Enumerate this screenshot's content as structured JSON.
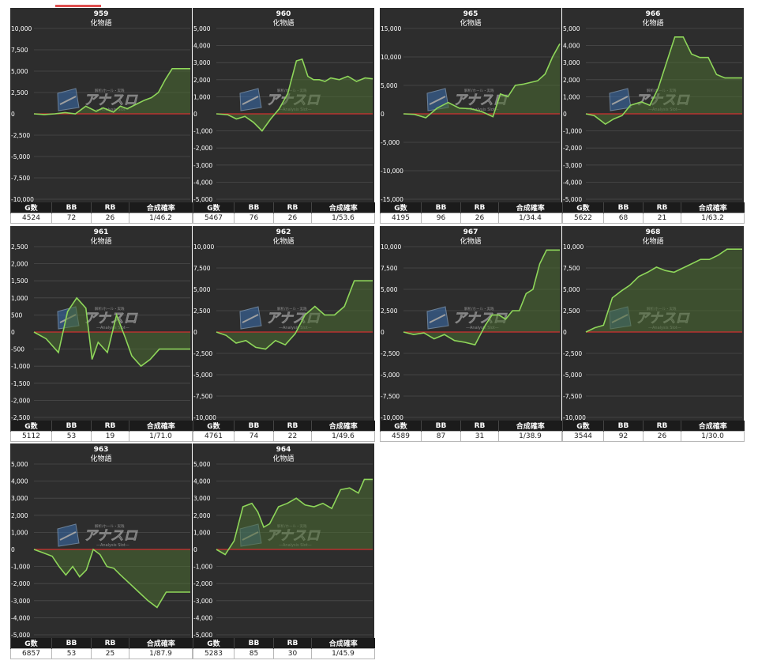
{
  "subtitle": "化物語",
  "headers": [
    "G数",
    "BB",
    "RB",
    "合成確率"
  ],
  "colors": {
    "panel_bg": "#2d2d2d",
    "line": "#8ed65a",
    "fill": "#4a6b32",
    "zero_line": "#d03030",
    "grid": "#4c4c4c",
    "text": "#ffffff"
  },
  "logo": {
    "main": "アナスロ",
    "sub": "—Analysis Slot—",
    "small": "解析/ホール・実践"
  },
  "chart_data": [
    {
      "type": "area",
      "title": "959",
      "ylim": [
        -10000,
        10000
      ],
      "yticks": [
        "10,000",
        "7,500",
        "5,000",
        "2,500",
        "0",
        "-2,500",
        "-5,000",
        "-7,500",
        "-10,000"
      ],
      "x": [
        0,
        300,
        600,
        900,
        1200,
        1500,
        1800,
        2000,
        2300,
        2500,
        2700,
        3000,
        3200,
        3400,
        3600,
        3800,
        4000,
        4200,
        4524
      ],
      "values": [
        0,
        -80,
        0,
        150,
        0,
        900,
        300,
        700,
        200,
        900,
        600,
        1200,
        1600,
        1900,
        2500,
        4000,
        5300,
        5300,
        5300
      ],
      "stats": {
        "games": "4524",
        "bb": "72",
        "rb": "26",
        "rate": "1/46.2"
      }
    },
    {
      "type": "area",
      "title": "960",
      "ylim": [
        -5000,
        5000
      ],
      "yticks": [
        "5,000",
        "4,000",
        "3,000",
        "2,000",
        "1,000",
        "0",
        "-1,000",
        "-2,000",
        "-3,000",
        "-4,000",
        "-5,000"
      ],
      "x": [
        0,
        400,
        700,
        1000,
        1300,
        1600,
        1900,
        2200,
        2500,
        2800,
        3000,
        3200,
        3400,
        3600,
        3800,
        4000,
        4300,
        4600,
        4900,
        5200,
        5467
      ],
      "values": [
        0,
        -50,
        -300,
        -150,
        -500,
        -1000,
        -300,
        300,
        1200,
        3100,
        3200,
        2200,
        2000,
        2000,
        1900,
        2100,
        2000,
        2200,
        1900,
        2100,
        2050
      ],
      "stats": {
        "games": "5467",
        "bb": "76",
        "rb": "26",
        "rate": "1/53.6"
      }
    },
    {
      "type": "area",
      "title": "965",
      "ylim": [
        -15000,
        15000
      ],
      "yticks": [
        "15,000",
        "10,000",
        "5,000",
        "0",
        "-5,000",
        "-10,000",
        "-15,000"
      ],
      "x": [
        0,
        300,
        600,
        900,
        1200,
        1500,
        1800,
        2100,
        2400,
        2600,
        2800,
        3000,
        3200,
        3400,
        3600,
        3800,
        4000,
        4195
      ],
      "values": [
        0,
        -100,
        -700,
        1000,
        2000,
        1000,
        900,
        400,
        -500,
        3500,
        3000,
        5000,
        5200,
        5500,
        5800,
        7000,
        10000,
        12300
      ],
      "stats": {
        "games": "4195",
        "bb": "96",
        "rb": "26",
        "rate": "1/34.4"
      }
    },
    {
      "type": "area",
      "title": "966",
      "ylim": [
        -5000,
        5000
      ],
      "yticks": [
        "5,000",
        "4,000",
        "3,000",
        "2,000",
        "1,000",
        "0",
        "-1,000",
        "-2,000",
        "-3,000",
        "-4,000",
        "-5,000"
      ],
      "x": [
        0,
        300,
        700,
        1000,
        1300,
        1600,
        2000,
        2300,
        2600,
        2900,
        3200,
        3500,
        3800,
        4100,
        4400,
        4700,
        5000,
        5300,
        5622
      ],
      "values": [
        0,
        -100,
        -600,
        -300,
        -100,
        500,
        700,
        500,
        1500,
        3000,
        4500,
        4500,
        3500,
        3300,
        3300,
        2300,
        2100,
        2100,
        2100
      ],
      "stats": {
        "games": "5622",
        "bb": "68",
        "rb": "21",
        "rate": "1/63.2"
      }
    },
    {
      "type": "area",
      "title": "961",
      "ylim": [
        -2500,
        2500
      ],
      "yticks": [
        "2,500",
        "2,000",
        "1,500",
        "1,000",
        "500",
        "0",
        "-500",
        "-1,000",
        "-1,500",
        "-2,000",
        "-2,500"
      ],
      "x": [
        0,
        400,
        800,
        1100,
        1400,
        1700,
        1900,
        2100,
        2400,
        2700,
        3000,
        3200,
        3500,
        3800,
        4100,
        4400,
        4700,
        5112
      ],
      "values": [
        0,
        -200,
        -600,
        600,
        1000,
        700,
        -800,
        -300,
        -600,
        500,
        -200,
        -700,
        -1000,
        -800,
        -500,
        -500,
        -500,
        -500
      ],
      "stats": {
        "games": "5112",
        "bb": "53",
        "rb": "19",
        "rate": "1/71.0"
      }
    },
    {
      "type": "area",
      "title": "962",
      "ylim": [
        -10000,
        10000
      ],
      "yticks": [
        "10,000",
        "7,500",
        "5,000",
        "2,500",
        "0",
        "-2,500",
        "-5,000",
        "-7,500",
        "-10,000"
      ],
      "x": [
        0,
        300,
        600,
        900,
        1200,
        1500,
        1800,
        2100,
        2400,
        2700,
        3000,
        3300,
        3600,
        3900,
        4200,
        4500,
        4761
      ],
      "values": [
        0,
        -400,
        -1300,
        -1000,
        -1800,
        -2000,
        -1000,
        -1500,
        -200,
        2000,
        3000,
        2000,
        2000,
        3000,
        6000,
        6000,
        6000
      ],
      "stats": {
        "games": "4761",
        "bb": "74",
        "rb": "22",
        "rate": "1/49.6"
      }
    },
    {
      "type": "area",
      "title": "967",
      "ylim": [
        -10000,
        10000
      ],
      "yticks": [
        "10,000",
        "7,500",
        "5,000",
        "2,500",
        "0",
        "-2,500",
        "-5,000",
        "-7,500",
        "-10,000"
      ],
      "x": [
        0,
        300,
        600,
        900,
        1200,
        1500,
        1800,
        2100,
        2400,
        2600,
        2800,
        3000,
        3200,
        3400,
        3600,
        3800,
        4000,
        4200,
        4400,
        4589
      ],
      "values": [
        0,
        -300,
        -100,
        -800,
        -300,
        -1000,
        -1200,
        -1500,
        800,
        2000,
        2000,
        1500,
        2500,
        2500,
        4500,
        5000,
        8000,
        9600,
        9600,
        9600
      ],
      "stats": {
        "games": "4589",
        "bb": "87",
        "rb": "31",
        "rate": "1/38.9"
      }
    },
    {
      "type": "area",
      "title": "968",
      "ylim": [
        -10000,
        10000
      ],
      "yticks": [
        "10,000",
        "7,500",
        "5,000",
        "2,500",
        "0",
        "-2,500",
        "-5,000",
        "-7,500",
        "-10,000"
      ],
      "x": [
        0,
        200,
        400,
        600,
        800,
        1000,
        1200,
        1400,
        1600,
        1800,
        2000,
        2200,
        2400,
        2600,
        2800,
        3000,
        3200,
        3400,
        3544
      ],
      "values": [
        0,
        500,
        800,
        4000,
        4800,
        5500,
        6500,
        7000,
        7600,
        7200,
        7000,
        7500,
        8000,
        8500,
        8500,
        9000,
        9700,
        9700,
        9700
      ],
      "stats": {
        "games": "3544",
        "bb": "92",
        "rb": "26",
        "rate": "1/30.0"
      }
    },
    {
      "type": "area",
      "title": "963",
      "ylim": [
        -5000,
        5000
      ],
      "yticks": [
        "5,000",
        "4,000",
        "3,000",
        "2,000",
        "1,000",
        "0",
        "-1,000",
        "-2,000",
        "-3,000",
        "-4,000",
        "-5,000"
      ],
      "x": [
        0,
        400,
        800,
        1100,
        1400,
        1700,
        2000,
        2300,
        2600,
        2900,
        3200,
        3500,
        3800,
        4200,
        4600,
        5000,
        5400,
        5800,
        6200,
        6857
      ],
      "values": [
        0,
        -200,
        -400,
        -1000,
        -1500,
        -1000,
        -1600,
        -1200,
        0,
        -300,
        -1000,
        -1100,
        -1500,
        -2000,
        -2500,
        -3000,
        -3400,
        -2500,
        -2500,
        -2500
      ],
      "stats": {
        "games": "6857",
        "bb": "53",
        "rb": "25",
        "rate": "1/87.9"
      }
    },
    {
      "type": "area",
      "title": "964",
      "ylim": [
        -5000,
        5000
      ],
      "yticks": [
        "5,000",
        "4,000",
        "3,000",
        "2,000",
        "1,000",
        "0",
        "-1,000",
        "-2,000",
        "-3,000",
        "-4,000",
        "-5,000"
      ],
      "x": [
        0,
        300,
        600,
        900,
        1200,
        1400,
        1600,
        1800,
        2100,
        2400,
        2700,
        3000,
        3300,
        3600,
        3900,
        4200,
        4500,
        4800,
        5000,
        5283
      ],
      "values": [
        0,
        -300,
        500,
        2500,
        2700,
        2200,
        1300,
        1500,
        2500,
        2700,
        3000,
        2600,
        2500,
        2700,
        2400,
        3500,
        3600,
        3300,
        4100,
        4100
      ],
      "stats": {
        "games": "5283",
        "bb": "85",
        "rb": "30",
        "rate": "1/45.9"
      }
    }
  ]
}
